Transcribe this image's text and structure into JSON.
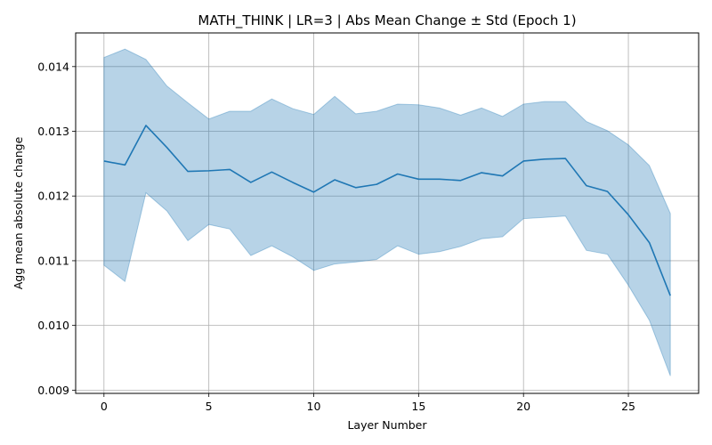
{
  "chart_data": {
    "type": "line",
    "title": "MATH_THINK | LR=3 | Abs Mean Change ± Std (Epoch 1)",
    "xlabel": "Layer Number",
    "ylabel": "Agg mean absolute change",
    "xlim": [
      -1.35,
      28.35
    ],
    "ylim": [
      0.00895,
      0.01452
    ],
    "xticks": [
      0,
      5,
      10,
      15,
      20,
      25
    ],
    "xtick_labels": [
      "0",
      "5",
      "10",
      "15",
      "20",
      "25"
    ],
    "yticks": [
      0.009,
      0.01,
      0.011,
      0.012,
      0.013,
      0.014
    ],
    "ytick_labels": [
      "0.009",
      "0.010",
      "0.011",
      "0.012",
      "0.013",
      "0.014"
    ],
    "grid": true,
    "legend": "none",
    "colors": {
      "line": "#1f77b4",
      "band": "#1f77b4",
      "grid": "#b0b0b0"
    },
    "x": [
      0,
      1,
      2,
      3,
      4,
      5,
      6,
      7,
      8,
      9,
      10,
      11,
      12,
      13,
      14,
      15,
      16,
      17,
      18,
      19,
      20,
      21,
      22,
      23,
      24,
      25,
      26,
      27
    ],
    "series": [
      {
        "mean": [
          0.01254,
          0.01248,
          0.01309,
          0.01275,
          0.01238,
          0.01239,
          0.01241,
          0.01221,
          0.01237,
          0.01221,
          0.01206,
          0.01225,
          0.01213,
          0.01218,
          0.01234,
          0.01226,
          0.01226,
          0.01224,
          0.01236,
          0.01231,
          0.01254,
          0.01257,
          0.01258,
          0.01216,
          0.01207,
          0.01171,
          0.01128,
          0.01046
        ],
        "upper": [
          0.01414,
          0.01427,
          0.01411,
          0.0137,
          0.01344,
          0.01319,
          0.01331,
          0.01331,
          0.0135,
          0.01335,
          0.01326,
          0.01354,
          0.01327,
          0.01331,
          0.01342,
          0.01341,
          0.01336,
          0.01325,
          0.01336,
          0.01323,
          0.01342,
          0.01346,
          0.01346,
          0.01315,
          0.01301,
          0.01279,
          0.01247,
          0.01173
        ],
        "lower": [
          0.01093,
          0.01068,
          0.01205,
          0.01177,
          0.01131,
          0.01156,
          0.01149,
          0.01108,
          0.01123,
          0.01106,
          0.01085,
          0.01095,
          0.01098,
          0.01102,
          0.01123,
          0.0111,
          0.01114,
          0.01122,
          0.01134,
          0.01137,
          0.01165,
          0.01167,
          0.01169,
          0.01116,
          0.0111,
          0.01062,
          0.01008,
          0.00922
        ]
      }
    ]
  }
}
